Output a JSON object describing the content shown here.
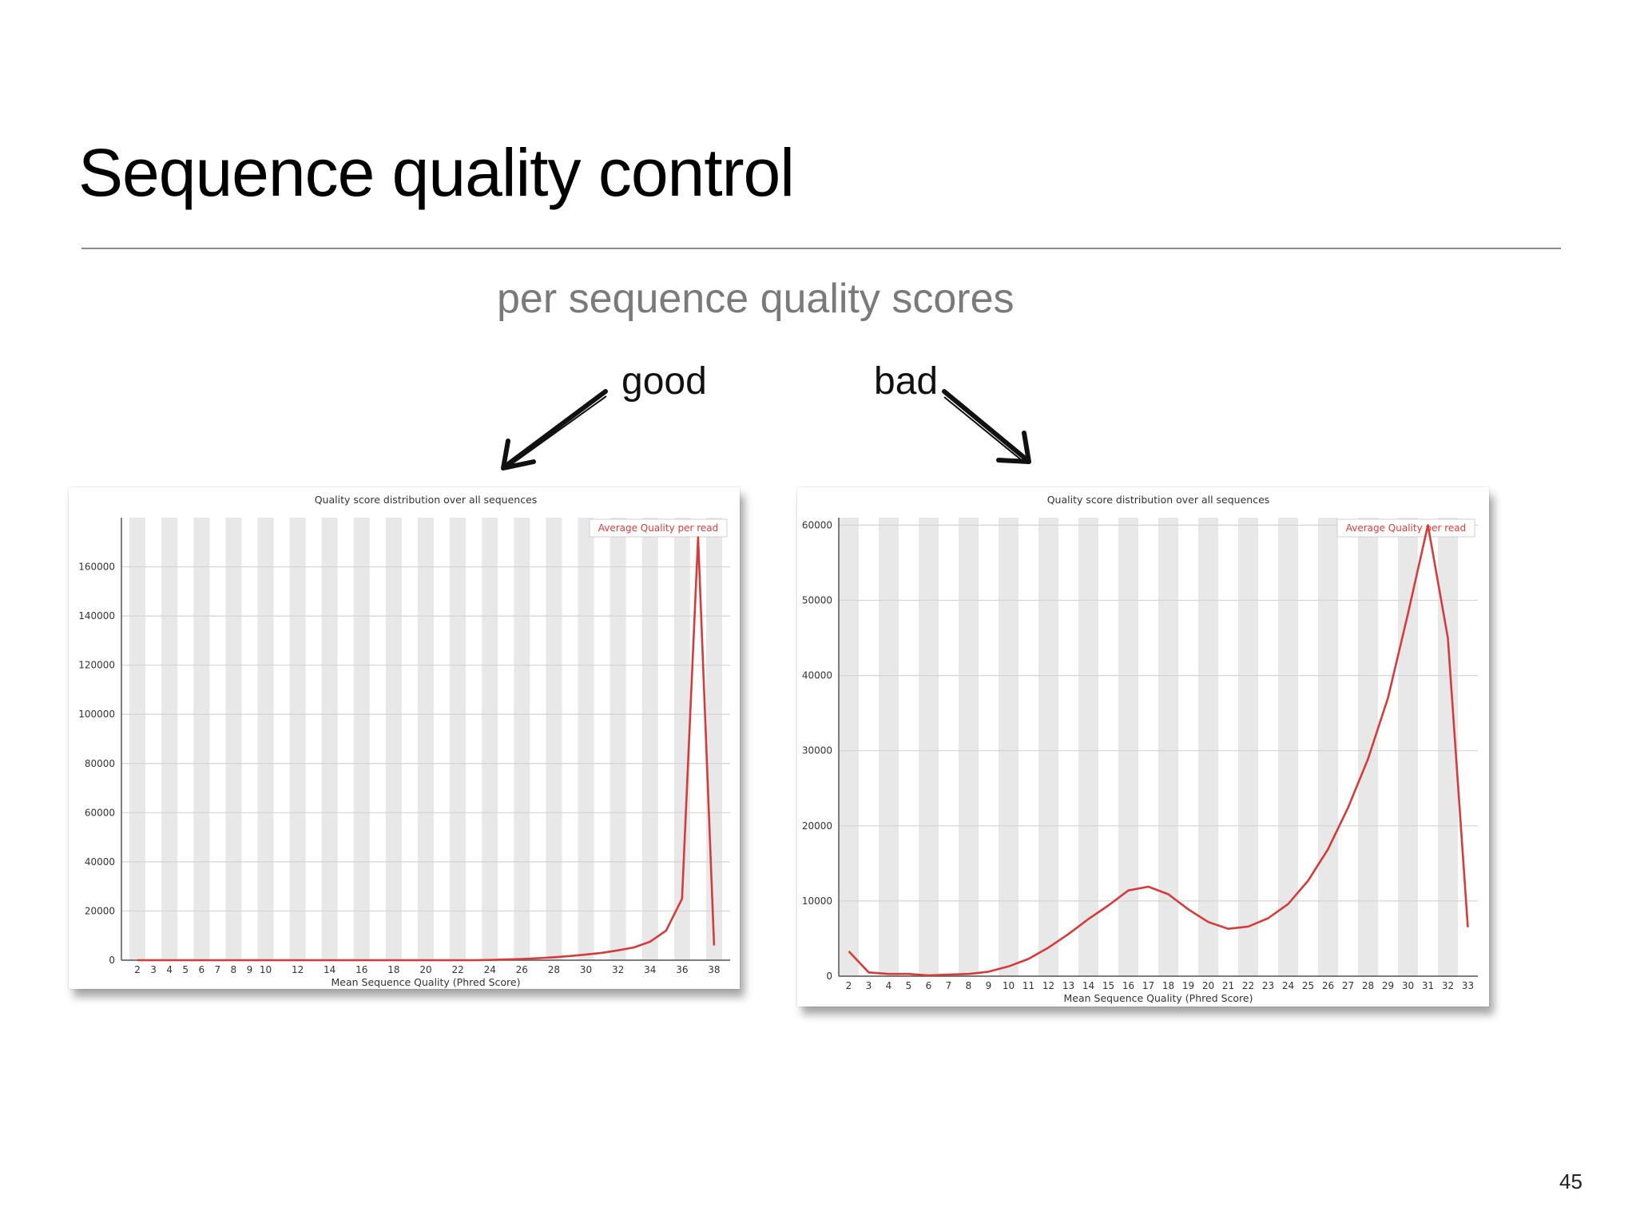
{
  "slide": {
    "title": "Sequence quality control",
    "subtitle": "per sequence quality scores",
    "label_good": "good",
    "label_bad": "bad",
    "page_number": "45"
  },
  "colors": {
    "line": "#d43c3c",
    "stripe": "#e8e8e8",
    "grid": "#d4d4d4",
    "axis_text": "#333333",
    "subtitle": "#7a7a7a"
  },
  "chart_data": [
    {
      "type": "line",
      "title": "Quality score distribution over all sequences",
      "xlabel": "Mean Sequence Quality (Phred Score)",
      "ylabel": "",
      "legend": "Average Quality per read",
      "legend_position": "top-right",
      "xlim": [
        1,
        39
      ],
      "ylim": [
        0,
        180000
      ],
      "yticks": [
        0,
        20000,
        40000,
        60000,
        80000,
        100000,
        120000,
        140000,
        160000
      ],
      "xticks": [
        2,
        3,
        4,
        5,
        6,
        7,
        8,
        9,
        10,
        12,
        14,
        16,
        18,
        20,
        22,
        24,
        26,
        28,
        30,
        32,
        34,
        36,
        38
      ],
      "grid": "horizontal",
      "stripes": "alternating vertical bands per score",
      "series": [
        {
          "x": [
            2,
            3,
            4,
            5,
            6,
            7,
            8,
            9,
            10,
            11,
            12,
            13,
            14,
            15,
            16,
            17,
            18,
            19,
            20,
            21,
            22,
            23,
            24,
            25,
            26,
            27,
            28,
            29,
            30,
            31,
            32,
            33,
            34,
            35,
            36,
            37,
            38
          ],
          "values": [
            0,
            0,
            0,
            0,
            0,
            0,
            0,
            0,
            0,
            0,
            0,
            0,
            0,
            0,
            0,
            0,
            0,
            0,
            0,
            0,
            0,
            0,
            100,
            300,
            500,
            800,
            1200,
            1700,
            2300,
            3000,
            4000,
            5200,
            7500,
            12000,
            25000,
            172000,
            6000
          ]
        }
      ]
    },
    {
      "type": "line",
      "title": "Quality score distribution over all sequences",
      "xlabel": "Mean Sequence Quality (Phred Score)",
      "ylabel": "",
      "legend": "Average Quality per read",
      "legend_position": "top-right",
      "xlim": [
        1.5,
        33.5
      ],
      "ylim": [
        0,
        61000
      ],
      "yticks": [
        0,
        10000,
        20000,
        30000,
        40000,
        50000,
        60000
      ],
      "xticks": [
        2,
        3,
        4,
        5,
        6,
        7,
        8,
        9,
        10,
        11,
        12,
        13,
        14,
        15,
        16,
        17,
        18,
        19,
        20,
        21,
        22,
        23,
        24,
        25,
        26,
        27,
        28,
        29,
        30,
        31,
        32,
        33
      ],
      "grid": "horizontal",
      "stripes": "alternating vertical bands per score",
      "series": [
        {
          "x": [
            2,
            3,
            4,
            5,
            6,
            7,
            8,
            9,
            10,
            11,
            12,
            13,
            14,
            15,
            16,
            17,
            18,
            19,
            20,
            21,
            22,
            23,
            24,
            25,
            26,
            27,
            28,
            29,
            30,
            31,
            32,
            33
          ],
          "values": [
            3300,
            500,
            300,
            300,
            100,
            200,
            300,
            600,
            1300,
            2300,
            3800,
            5600,
            7600,
            9400,
            11400,
            11900,
            10900,
            8900,
            7200,
            6300,
            6600,
            7700,
            9600,
            12700,
            16900,
            22400,
            28900,
            37000,
            48200,
            60000,
            45000,
            6500
          ]
        }
      ]
    }
  ]
}
